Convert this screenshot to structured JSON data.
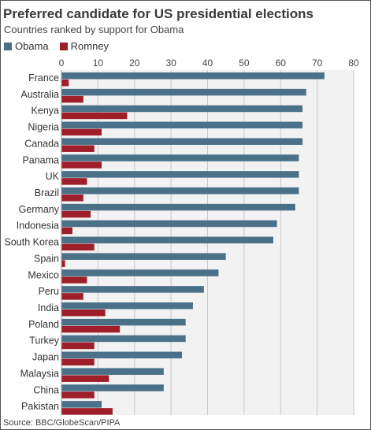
{
  "title": "Preferred candidate for US presidential elections",
  "subtitle": "Countries ranked by support for Obama",
  "source": "Source: BBC/GlobeScan/PIPA",
  "colors": {
    "obama": "#4b7189",
    "romney": "#9e1f2a",
    "grid": "#c8c8c8",
    "panel": "#f2f2f2"
  },
  "chart_data": {
    "type": "bar",
    "orientation": "horizontal",
    "title": "Preferred candidate for US presidential elections",
    "subtitle": "Countries ranked by support for Obama",
    "xlim": [
      0,
      80
    ],
    "xticks": [
      0,
      10,
      20,
      30,
      40,
      50,
      60,
      70,
      80
    ],
    "grid": true,
    "legend": "top-left",
    "categories": [
      "France",
      "Australia",
      "Kenya",
      "Nigeria",
      "Canada",
      "Panama",
      "UK",
      "Brazil",
      "Germany",
      "Indonesia",
      "South Korea",
      "Spain",
      "Mexico",
      "Peru",
      "India",
      "Poland",
      "Turkey",
      "Japan",
      "Malaysia",
      "China",
      "Pakistan"
    ],
    "series": [
      {
        "name": "Obama",
        "color": "#4b7189",
        "values": [
          72,
          67,
          66,
          66,
          66,
          65,
          65,
          65,
          64,
          59,
          58,
          45,
          43,
          39,
          36,
          34,
          34,
          33,
          28,
          28,
          11
        ]
      },
      {
        "name": "Romney",
        "color": "#9e1f2a",
        "values": [
          2,
          6,
          18,
          11,
          9,
          11,
          7,
          6,
          8,
          3,
          9,
          1,
          7,
          6,
          12,
          16,
          9,
          9,
          13,
          9,
          14
        ]
      }
    ]
  }
}
